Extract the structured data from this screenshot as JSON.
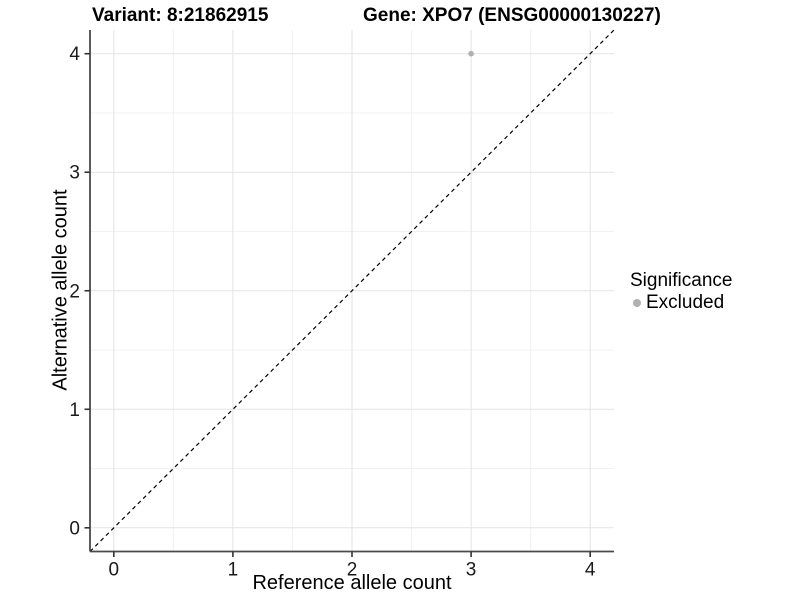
{
  "chart_data": {
    "type": "scatter",
    "titles": {
      "left": "Variant: 8:21862915",
      "right": "Gene: XPO7 (ENSG00000130227)"
    },
    "xlabel": "Reference allele count",
    "ylabel": "Alternative allele count",
    "xlim": [
      -0.2,
      4.2
    ],
    "ylim": [
      -0.2,
      4.2
    ],
    "xticks": [
      0,
      1,
      2,
      3,
      4
    ],
    "yticks": [
      0,
      1,
      2,
      3,
      4
    ],
    "minor_xticks": [
      0.5,
      1.5,
      2.5,
      3.5
    ],
    "minor_yticks": [
      0.5,
      1.5,
      2.5,
      3.5
    ],
    "grid": "major+minor",
    "reference_line": {
      "type": "identity",
      "slope": 1,
      "intercept": 0,
      "style": "dashed",
      "color": "#000000"
    },
    "series": [
      {
        "name": "Excluded",
        "color": "#b0b0b0",
        "marker": "circle",
        "points": [
          [
            3,
            4
          ]
        ]
      }
    ],
    "legend": {
      "title": "Significance",
      "position": "right",
      "entries": [
        {
          "label": "Excluded",
          "color": "#b0b0b0",
          "marker": "circle"
        }
      ]
    },
    "colors": {
      "grid_major": "#e3e3e3",
      "grid_minor": "#f1f1f1",
      "axis_line": "#4a4a4a",
      "tick_mark": "#333333",
      "tick_label": "#1a1a1a",
      "point": "#b0b0b0"
    }
  }
}
